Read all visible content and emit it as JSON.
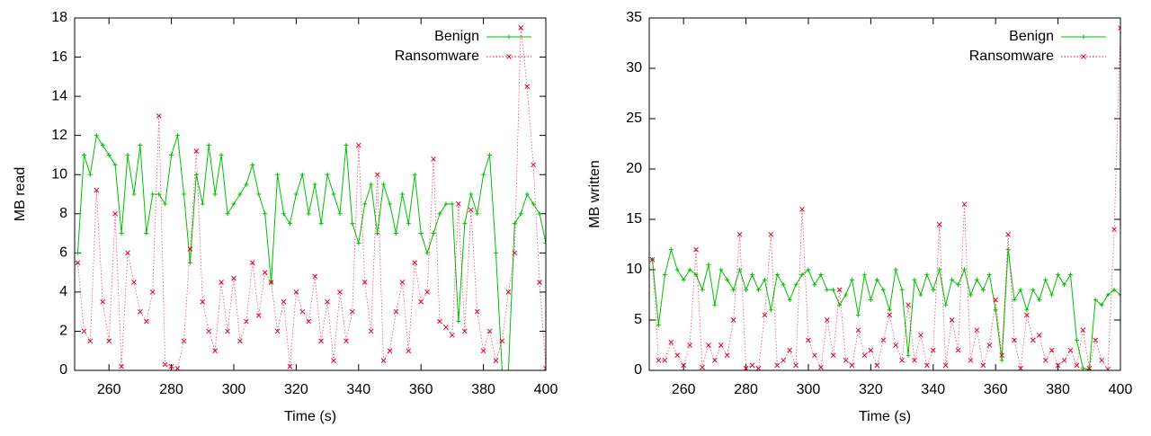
{
  "chart_data": [
    {
      "type": "line",
      "xlabel": "Time (s)",
      "ylabel": "MB read",
      "xlim": [
        249,
        400
      ],
      "xticks": [
        260,
        280,
        300,
        320,
        340,
        360,
        380,
        400
      ],
      "ylim": [
        0,
        18
      ],
      "yticks": [
        0,
        2,
        4,
        6,
        8,
        10,
        12,
        14,
        16,
        18
      ],
      "legend": "top right",
      "x": [
        250,
        252,
        254,
        256,
        258,
        260,
        262,
        264,
        266,
        268,
        270,
        272,
        274,
        276,
        278,
        280,
        282,
        284,
        286,
        288,
        290,
        292,
        294,
        296,
        298,
        300,
        302,
        304,
        306,
        308,
        310,
        312,
        314,
        316,
        318,
        320,
        322,
        324,
        326,
        328,
        330,
        332,
        334,
        336,
        338,
        340,
        342,
        344,
        346,
        348,
        350,
        352,
        354,
        356,
        358,
        360,
        362,
        364,
        366,
        368,
        370,
        372,
        374,
        376,
        378,
        380,
        382,
        384,
        386,
        388,
        390,
        392,
        394,
        396,
        398,
        400
      ],
      "series": [
        {
          "name": "Benign",
          "color": "#00c000",
          "marker": "plus",
          "dash": "solid",
          "values": [
            6,
            11,
            10,
            12,
            11.5,
            11,
            10.5,
            7,
            11,
            9,
            11.5,
            7,
            9,
            9,
            8.5,
            11,
            12,
            9,
            5.5,
            10,
            8.5,
            11.5,
            9,
            11,
            8,
            8.5,
            9,
            9.5,
            10.5,
            9,
            8,
            4.5,
            10,
            8,
            7.5,
            9,
            10,
            8,
            9.5,
            7.5,
            10,
            9,
            8,
            11.5,
            7.5,
            6.5,
            8.5,
            9.5,
            7,
            9.5,
            8.5,
            7,
            9,
            7.5,
            10,
            7,
            6,
            7,
            8,
            8.5,
            8.5,
            2.5,
            7.5,
            9,
            8,
            10,
            11,
            6,
            0,
            0,
            7.5,
            8,
            9,
            8.5,
            8,
            6.5
          ]
        },
        {
          "name": "Ransomware",
          "color": "#e4002b",
          "marker": "cross",
          "dash": "dotted",
          "values": [
            5.5,
            2,
            1.5,
            9.2,
            3.5,
            1.5,
            8,
            0.2,
            6,
            4.5,
            3,
            2.5,
            4,
            13,
            0.3,
            0.2,
            0.1,
            1.5,
            6.2,
            11.2,
            3.5,
            2,
            1,
            4.5,
            2,
            4.7,
            1.5,
            2.5,
            5.5,
            2.8,
            5,
            4.5,
            2,
            3.5,
            0.2,
            4,
            3,
            2.5,
            4.8,
            1.5,
            3.5,
            0.5,
            4,
            1.5,
            3,
            11.5,
            4.5,
            2,
            10,
            0.5,
            1,
            3,
            4.5,
            1,
            5.5,
            3.5,
            4,
            10.8,
            2.5,
            2.2,
            1.8,
            8.5,
            2,
            8.2,
            3,
            1,
            2,
            0.5,
            1.5,
            4,
            6,
            17.5,
            14.5,
            10.5,
            4.5,
            0.1
          ]
        }
      ]
    },
    {
      "type": "line",
      "xlabel": "Time (s)",
      "ylabel": "MB written",
      "xlim": [
        249,
        400
      ],
      "xticks": [
        260,
        280,
        300,
        320,
        340,
        360,
        380,
        400
      ],
      "ylim": [
        0,
        35
      ],
      "yticks": [
        0,
        5,
        10,
        15,
        20,
        25,
        30,
        35
      ],
      "legend": "top right",
      "x": [
        250,
        252,
        254,
        256,
        258,
        260,
        262,
        264,
        266,
        268,
        270,
        272,
        274,
        276,
        278,
        280,
        282,
        284,
        286,
        288,
        290,
        292,
        294,
        296,
        298,
        300,
        302,
        304,
        306,
        308,
        310,
        312,
        314,
        316,
        318,
        320,
        322,
        324,
        326,
        328,
        330,
        332,
        334,
        336,
        338,
        340,
        342,
        344,
        346,
        348,
        350,
        352,
        354,
        356,
        358,
        360,
        362,
        364,
        366,
        368,
        370,
        372,
        374,
        376,
        378,
        380,
        382,
        384,
        386,
        388,
        390,
        392,
        394,
        396,
        398,
        400
      ],
      "series": [
        {
          "name": "Benign",
          "color": "#00c000",
          "marker": "plus",
          "dash": "solid",
          "values": [
            11,
            4.5,
            9.5,
            12,
            10,
            9,
            10,
            9.5,
            8,
            10.5,
            6.5,
            10,
            9,
            8,
            10,
            8,
            9.5,
            8,
            9,
            6,
            9.5,
            8.5,
            7,
            8.5,
            9.5,
            10,
            8.5,
            9.5,
            8,
            8,
            6.5,
            7.5,
            9,
            5.5,
            9.5,
            7,
            9,
            8,
            6,
            10,
            8,
            1.5,
            9,
            7.5,
            9.5,
            8,
            10,
            6.5,
            9,
            8.5,
            10,
            7.5,
            9,
            8,
            9.5,
            6,
            1,
            12,
            7,
            8,
            6,
            8,
            7,
            9,
            7.5,
            9.5,
            8.5,
            9.5,
            3,
            0.2,
            0.1,
            7,
            6.5,
            7.5,
            8,
            7.5
          ]
        },
        {
          "name": "Ransomware",
          "color": "#e4002b",
          "marker": "cross",
          "dash": "dotted",
          "values": [
            11,
            1,
            1,
            2.8,
            1.5,
            0.5,
            2.5,
            12,
            0.3,
            2.5,
            1,
            2.5,
            1.5,
            5,
            13.5,
            0.2,
            0.5,
            0.2,
            5.5,
            13.5,
            0.5,
            1,
            2,
            0.5,
            16,
            3,
            1.5,
            0.3,
            5,
            1.5,
            8,
            1,
            0.5,
            4,
            1.5,
            2,
            0.5,
            3,
            5.5,
            2.5,
            1,
            6.5,
            1,
            3.5,
            0.5,
            2,
            14.5,
            0.5,
            5,
            2,
            16.5,
            1,
            4,
            0.5,
            2.5,
            7,
            1.5,
            13.5,
            3,
            0.2,
            5.5,
            3,
            3.5,
            1,
            2,
            0.5,
            1,
            2,
            0.5,
            4,
            0.2,
            3,
            1,
            0.1,
            14,
            34
          ]
        }
      ]
    }
  ]
}
